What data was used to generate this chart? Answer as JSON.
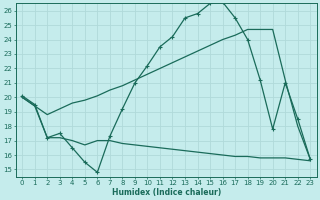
{
  "xlabel": "Humidex (Indice chaleur)",
  "bg_color": "#c5ecec",
  "line_color": "#1a6b5a",
  "grid_color": "#b0dada",
  "xlim": [
    -0.5,
    23.5
  ],
  "ylim": [
    14.5,
    26.5
  ],
  "xticks": [
    0,
    1,
    2,
    3,
    4,
    5,
    6,
    7,
    8,
    9,
    10,
    11,
    12,
    13,
    14,
    15,
    16,
    17,
    18,
    19,
    20,
    21,
    22,
    23
  ],
  "yticks": [
    15,
    16,
    17,
    18,
    19,
    20,
    21,
    22,
    23,
    24,
    25,
    26
  ],
  "s1_x": [
    0,
    1,
    2,
    3,
    4,
    5,
    6,
    7,
    8,
    9,
    10,
    11,
    12,
    13,
    14,
    15,
    16,
    17,
    18,
    19,
    20,
    21,
    22,
    23
  ],
  "s1_y": [
    20.1,
    19.5,
    17.2,
    17.5,
    16.5,
    15.5,
    14.8,
    17.3,
    19.2,
    21.0,
    22.2,
    23.5,
    24.2,
    25.5,
    25.8,
    26.5,
    26.6,
    25.5,
    24.0,
    21.2,
    17.8,
    21.0,
    18.5,
    15.7
  ],
  "s2_x": [
    0,
    1,
    2,
    3,
    4,
    5,
    6,
    7,
    8,
    9,
    10,
    11,
    12,
    13,
    14,
    15,
    16,
    17,
    18,
    19,
    20,
    21,
    22,
    23
  ],
  "s2_y": [
    20.0,
    19.4,
    18.8,
    19.2,
    19.6,
    19.8,
    20.1,
    20.5,
    20.8,
    21.2,
    21.6,
    22.0,
    22.4,
    22.8,
    23.2,
    23.6,
    24.0,
    24.3,
    24.7,
    24.7,
    24.7,
    21.2,
    18.0,
    15.7
  ],
  "s3_x": [
    0,
    1,
    2,
    3,
    4,
    5,
    6,
    7,
    8,
    9,
    10,
    11,
    12,
    13,
    14,
    15,
    16,
    17,
    18,
    19,
    20,
    21,
    22,
    23
  ],
  "s3_y": [
    20.0,
    19.4,
    17.2,
    17.2,
    17.0,
    16.7,
    17.0,
    17.0,
    16.8,
    16.7,
    16.6,
    16.5,
    16.4,
    16.3,
    16.2,
    16.1,
    16.0,
    15.9,
    15.9,
    15.8,
    15.8,
    15.8,
    15.7,
    15.6
  ]
}
